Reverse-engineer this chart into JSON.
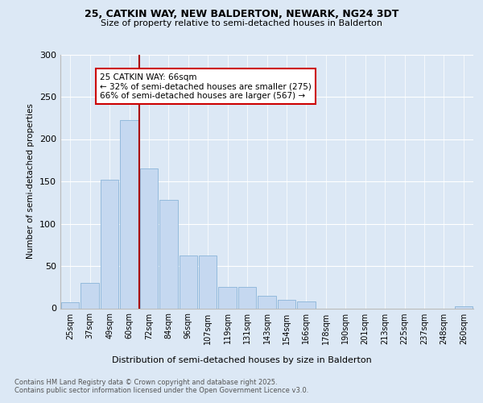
{
  "title1": "25, CATKIN WAY, NEW BALDERTON, NEWARK, NG24 3DT",
  "title2": "Size of property relative to semi-detached houses in Balderton",
  "xlabel": "Distribution of semi-detached houses by size in Balderton",
  "ylabel": "Number of semi-detached properties",
  "categories": [
    "25sqm",
    "37sqm",
    "49sqm",
    "60sqm",
    "72sqm",
    "84sqm",
    "96sqm",
    "107sqm",
    "119sqm",
    "131sqm",
    "143sqm",
    "154sqm",
    "166sqm",
    "178sqm",
    "190sqm",
    "201sqm",
    "213sqm",
    "225sqm",
    "237sqm",
    "248sqm",
    "260sqm"
  ],
  "values": [
    7,
    30,
    152,
    222,
    165,
    128,
    62,
    62,
    25,
    25,
    15,
    10,
    8,
    0,
    0,
    0,
    0,
    0,
    0,
    0,
    2
  ],
  "bar_color": "#c5d8f0",
  "bar_edge_color": "#8ab4d8",
  "vline_x": 3.5,
  "vline_color": "#aa0000",
  "annotation_text": "25 CATKIN WAY: 66sqm\n← 32% of semi-detached houses are smaller (275)\n66% of semi-detached houses are larger (567) →",
  "annotation_box_color": "#ffffff",
  "annotation_box_edge": "#cc0000",
  "ylim": [
    0,
    300
  ],
  "yticks": [
    0,
    50,
    100,
    150,
    200,
    250,
    300
  ],
  "footnote": "Contains HM Land Registry data © Crown copyright and database right 2025.\nContains public sector information licensed under the Open Government Licence v3.0.",
  "bg_color": "#dce8f5",
  "plot_bg_color": "#dce8f5",
  "title1_fontsize": 9,
  "title2_fontsize": 8
}
